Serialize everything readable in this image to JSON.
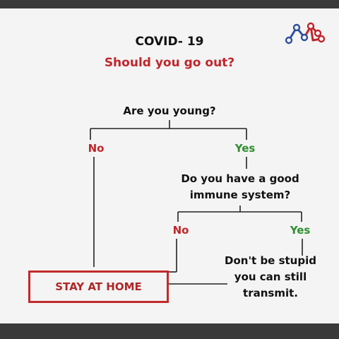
{
  "diagram": {
    "title": "COVID- 19",
    "subtitle": "Should you go out?",
    "question_1": "Are you young?",
    "branch_1_no": "No",
    "branch_1_yes": "Yes",
    "question_2_line_1": "Do you have a good",
    "question_2_line_2": "immune system?",
    "branch_2_no": "No",
    "branch_2_yes": "Yes",
    "outcome_stay": "STAY AT HOME",
    "outcome_message_line_1": "Don't be stupid",
    "outcome_message_line_2": "you can still",
    "outcome_message_line_3": "transmit."
  },
  "colors": {
    "accent_red": "#c0262b",
    "accent_green": "#2f8f2f",
    "text": "#111111",
    "background": "#f4f4f4"
  },
  "logo": {
    "icon": "network-logo-icon"
  }
}
